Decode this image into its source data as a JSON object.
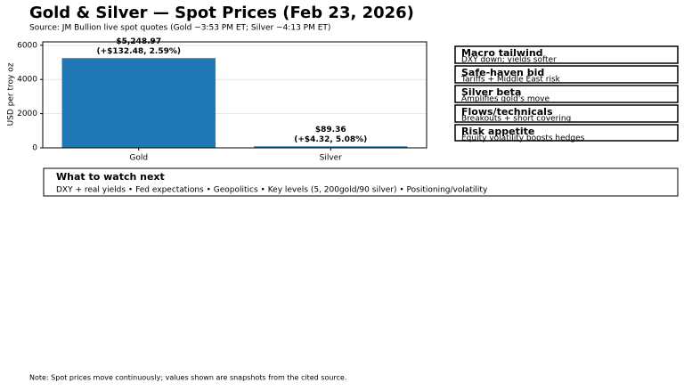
{
  "chart_data": {
    "type": "bar",
    "title": "Gold & Silver — Spot Prices (Feb 23, 2026)",
    "subtitle": "Source: JM Bullion live spot quotes (Gold ~3:53 PM ET; Silver ~4:13 PM ET)",
    "ylabel": "USD per troy oz",
    "categories": [
      "Gold",
      "Silver"
    ],
    "values": [
      5248.97,
      89.36
    ],
    "value_labels": [
      "$5,248.97",
      "$89.36"
    ],
    "change_labels": [
      "(+$132.48, 2.59%)",
      "(+$4.32, 5.08%)"
    ],
    "color": "#1f77b4",
    "ylim": [
      0,
      6200
    ],
    "yticks": [
      0,
      2000,
      4000,
      6000
    ],
    "grid": true
  },
  "cards": [
    {
      "title": "Macro tailwind",
      "text": "DXY down; yields softer"
    },
    {
      "title": "Safe-haven bid",
      "text": "Tariffs + Middle East risk"
    },
    {
      "title": "Silver beta",
      "text": "Amplifies gold's move"
    },
    {
      "title": "Flows/technicals",
      "text": "Breakouts + short covering"
    },
    {
      "title": "Risk appetite",
      "text": "Equity volatility boosts hedges"
    }
  ],
  "watch": {
    "title": "What to watch next",
    "text": "DXY + real yields • Fed expectations • Geopolitics • Key levels (5, 200gold/90 silver) • Positioning/volatility"
  },
  "note": "Note: Spot prices move continuously; values shown are snapshots from the cited source."
}
